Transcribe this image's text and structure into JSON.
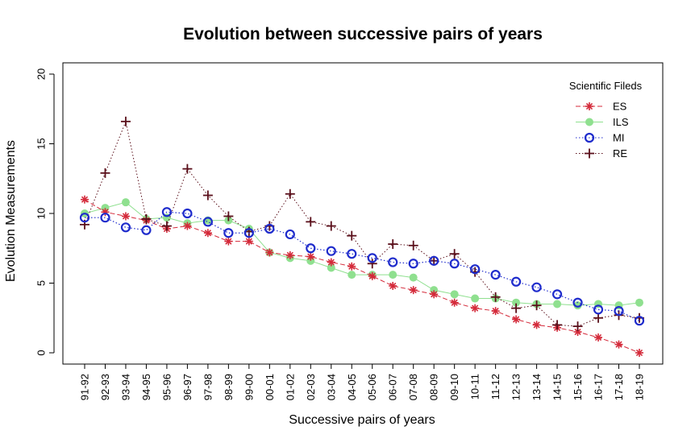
{
  "chart_data": {
    "type": "line",
    "title": "Evolution between successive pairs of years",
    "xlabel": "Successive pairs of years",
    "ylabel": "Evolution Measurements",
    "ylim": [
      0,
      20
    ],
    "yticks": [
      0,
      5,
      10,
      15,
      20
    ],
    "categories": [
      "91-92",
      "92-93",
      "93-94",
      "94-95",
      "95-96",
      "96-97",
      "97-98",
      "98-99",
      "99-00",
      "00-01",
      "01-02",
      "02-03",
      "03-04",
      "04-05",
      "05-06",
      "06-07",
      "07-08",
      "08-09",
      "09-10",
      "10-11",
      "11-12",
      "12-13",
      "13-14",
      "14-15",
      "15-16",
      "16-17",
      "17-18",
      "18-19"
    ],
    "legend_title": "Scientific Fileds",
    "legend_position": "top-right",
    "series": [
      {
        "name": "ES",
        "color": "#d42a3a",
        "marker": "asterisk",
        "dash": "dashed",
        "values": [
          11.0,
          10.1,
          9.8,
          9.5,
          8.9,
          9.1,
          8.6,
          8.0,
          8.0,
          7.2,
          7.0,
          6.9,
          6.5,
          6.2,
          5.5,
          4.8,
          4.5,
          4.2,
          3.6,
          3.2,
          3.0,
          2.4,
          2.0,
          1.8,
          1.5,
          1.1,
          0.6,
          0.0
        ]
      },
      {
        "name": "ILS",
        "color": "#8fe08f",
        "marker": "filled-circle",
        "dash": "solid",
        "values": [
          10.0,
          10.4,
          10.8,
          9.6,
          9.7,
          9.3,
          9.5,
          9.5,
          8.9,
          7.2,
          6.8,
          6.6,
          6.1,
          5.6,
          5.6,
          5.6,
          5.4,
          4.5,
          4.2,
          3.9,
          3.9,
          3.6,
          3.5,
          3.5,
          3.4,
          3.5,
          3.4,
          3.6
        ]
      },
      {
        "name": "MI",
        "color": "#1f2ccc",
        "marker": "open-circle",
        "dash": "dotted",
        "values": [
          9.7,
          9.7,
          9.0,
          8.8,
          10.1,
          10.0,
          9.4,
          8.6,
          8.6,
          8.9,
          8.5,
          7.5,
          7.3,
          7.1,
          6.8,
          6.5,
          6.4,
          6.6,
          6.4,
          6.0,
          5.6,
          5.1,
          4.7,
          4.2,
          3.6,
          3.1,
          3.0,
          2.3
        ]
      },
      {
        "name": "RE",
        "color": "#5a0f1a",
        "marker": "plus",
        "dash": "dotted",
        "values": [
          9.2,
          12.9,
          16.6,
          9.6,
          9.1,
          13.2,
          11.3,
          9.8,
          8.7,
          9.1,
          11.4,
          9.4,
          9.1,
          8.4,
          6.4,
          7.8,
          7.7,
          6.6,
          7.1,
          5.8,
          4.0,
          3.2,
          3.4,
          2.0,
          1.9,
          2.5,
          2.7,
          2.5
        ]
      }
    ]
  }
}
